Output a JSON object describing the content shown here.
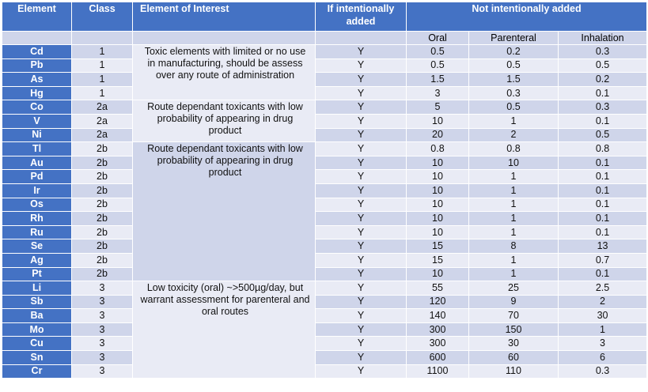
{
  "headers": {
    "element": "Element",
    "class": "Class",
    "interest": "Element of Interest",
    "intentional": "If intentionally added",
    "not_intentional": "Not intentionally added"
  },
  "subheaders": {
    "oral": "Oral",
    "parenteral": "Parenteral",
    "inhalation": "Inhalation"
  },
  "groups": [
    {
      "text": "Toxic elements with limited or no use in manufacturing, should be assess over any route of administration",
      "rows": 4
    },
    {
      "text": "Route dependant toxicants with low probability of appearing in drug product",
      "rows": 3
    },
    {
      "text": "Route dependant toxicants with low probability of appearing in drug product",
      "rows": 10
    },
    {
      "text": "Low toxicity (oral) ~>500µg/day, but warrant assessment for parenteral and oral routes",
      "rows": 7
    }
  ],
  "rows": [
    {
      "element": "Cd",
      "class": "1",
      "intentional": "Y",
      "oral": "0.5",
      "parenteral": "0.2",
      "inhalation": "0.3"
    },
    {
      "element": "Pb",
      "class": "1",
      "intentional": "Y",
      "oral": "0.5",
      "parenteral": "0.5",
      "inhalation": "0.5"
    },
    {
      "element": "As",
      "class": "1",
      "intentional": "Y",
      "oral": "1.5",
      "parenteral": "1.5",
      "inhalation": "0.2"
    },
    {
      "element": "Hg",
      "class": "1",
      "intentional": "Y",
      "oral": "3",
      "parenteral": "0.3",
      "inhalation": "0.1"
    },
    {
      "element": "Co",
      "class": "2a",
      "intentional": "Y",
      "oral": "5",
      "parenteral": "0.5",
      "inhalation": "0.3"
    },
    {
      "element": "V",
      "class": "2a",
      "intentional": "Y",
      "oral": "10",
      "parenteral": "1",
      "inhalation": "0.1"
    },
    {
      "element": "Ni",
      "class": "2a",
      "intentional": "Y",
      "oral": "20",
      "parenteral": "2",
      "inhalation": "0.5"
    },
    {
      "element": "Tl",
      "class": "2b",
      "intentional": "Y",
      "oral": "0.8",
      "parenteral": "0.8",
      "inhalation": "0.8"
    },
    {
      "element": "Au",
      "class": "2b",
      "intentional": "Y",
      "oral": "10",
      "parenteral": "10",
      "inhalation": "0.1"
    },
    {
      "element": "Pd",
      "class": "2b",
      "intentional": "Y",
      "oral": "10",
      "parenteral": "1",
      "inhalation": "0.1"
    },
    {
      "element": "Ir",
      "class": "2b",
      "intentional": "Y",
      "oral": "10",
      "parenteral": "1",
      "inhalation": "0.1"
    },
    {
      "element": "Os",
      "class": "2b",
      "intentional": "Y",
      "oral": "10",
      "parenteral": "1",
      "inhalation": "0.1"
    },
    {
      "element": "Rh",
      "class": "2b",
      "intentional": "Y",
      "oral": "10",
      "parenteral": "1",
      "inhalation": "0.1"
    },
    {
      "element": "Ru",
      "class": "2b",
      "intentional": "Y",
      "oral": "10",
      "parenteral": "1",
      "inhalation": "0.1"
    },
    {
      "element": "Se",
      "class": "2b",
      "intentional": "Y",
      "oral": "15",
      "parenteral": "8",
      "inhalation": "13"
    },
    {
      "element": "Ag",
      "class": "2b",
      "intentional": "Y",
      "oral": "15",
      "parenteral": "1",
      "inhalation": "0.7"
    },
    {
      "element": "Pt",
      "class": "2b",
      "intentional": "Y",
      "oral": "10",
      "parenteral": "1",
      "inhalation": "0.1"
    },
    {
      "element": "Li",
      "class": "3",
      "intentional": "Y",
      "oral": "55",
      "parenteral": "25",
      "inhalation": "2.5"
    },
    {
      "element": "Sb",
      "class": "3",
      "intentional": "Y",
      "oral": "120",
      "parenteral": "9",
      "inhalation": "2"
    },
    {
      "element": "Ba",
      "class": "3",
      "intentional": "Y",
      "oral": "140",
      "parenteral": "70",
      "inhalation": "30"
    },
    {
      "element": "Mo",
      "class": "3",
      "intentional": "Y",
      "oral": "300",
      "parenteral": "150",
      "inhalation": "1"
    },
    {
      "element": "Cu",
      "class": "3",
      "intentional": "Y",
      "oral": "300",
      "parenteral": "30",
      "inhalation": "3"
    },
    {
      "element": "Sn",
      "class": "3",
      "intentional": "Y",
      "oral": "600",
      "parenteral": "60",
      "inhalation": "6"
    },
    {
      "element": "Cr",
      "class": "3",
      "intentional": "Y",
      "oral": "1100",
      "parenteral": "110",
      "inhalation": "0.3"
    }
  ]
}
